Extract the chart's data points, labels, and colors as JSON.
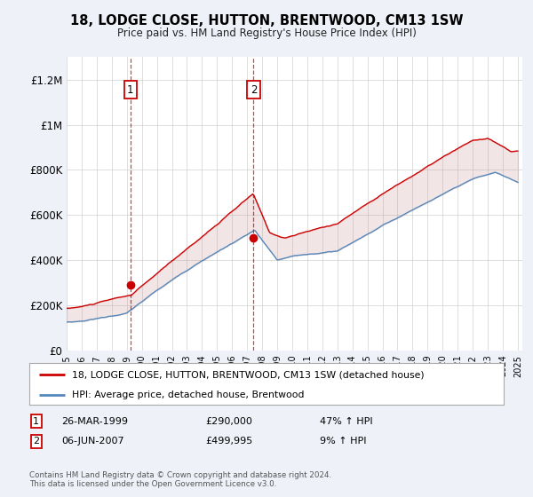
{
  "title": "18, LODGE CLOSE, HUTTON, BRENTWOOD, CM13 1SW",
  "subtitle": "Price paid vs. HM Land Registry's House Price Index (HPI)",
  "legend_line1": "18, LODGE CLOSE, HUTTON, BRENTWOOD, CM13 1SW (detached house)",
  "legend_line2": "HPI: Average price, detached house, Brentwood",
  "transaction1_date": "26-MAR-1999",
  "transaction1_price": "£290,000",
  "transaction1_hpi": "47% ↑ HPI",
  "transaction2_date": "06-JUN-2007",
  "transaction2_price": "£499,995",
  "transaction2_hpi": "9% ↑ HPI",
  "footer": "Contains HM Land Registry data © Crown copyright and database right 2024.\nThis data is licensed under the Open Government Licence v3.0.",
  "red_color": "#cc0000",
  "blue_color": "#5588bb",
  "fill_color": "#cc9999",
  "background_color": "#eef2f8",
  "plot_bg_color": "#ffffff",
  "grid_color": "#cccccc",
  "marker_box_color": "#cc0000",
  "ylim": [
    0,
    1300000
  ],
  "yticks": [
    0,
    200000,
    400000,
    600000,
    800000,
    1000000,
    1200000
  ],
  "ytick_labels": [
    "£0",
    "£200K",
    "£400K",
    "£600K",
    "£800K",
    "£1M",
    "£1.2M"
  ],
  "t1_year": 1999.23,
  "t2_year": 2007.43,
  "t1_price": 290000,
  "t2_price": 499995
}
